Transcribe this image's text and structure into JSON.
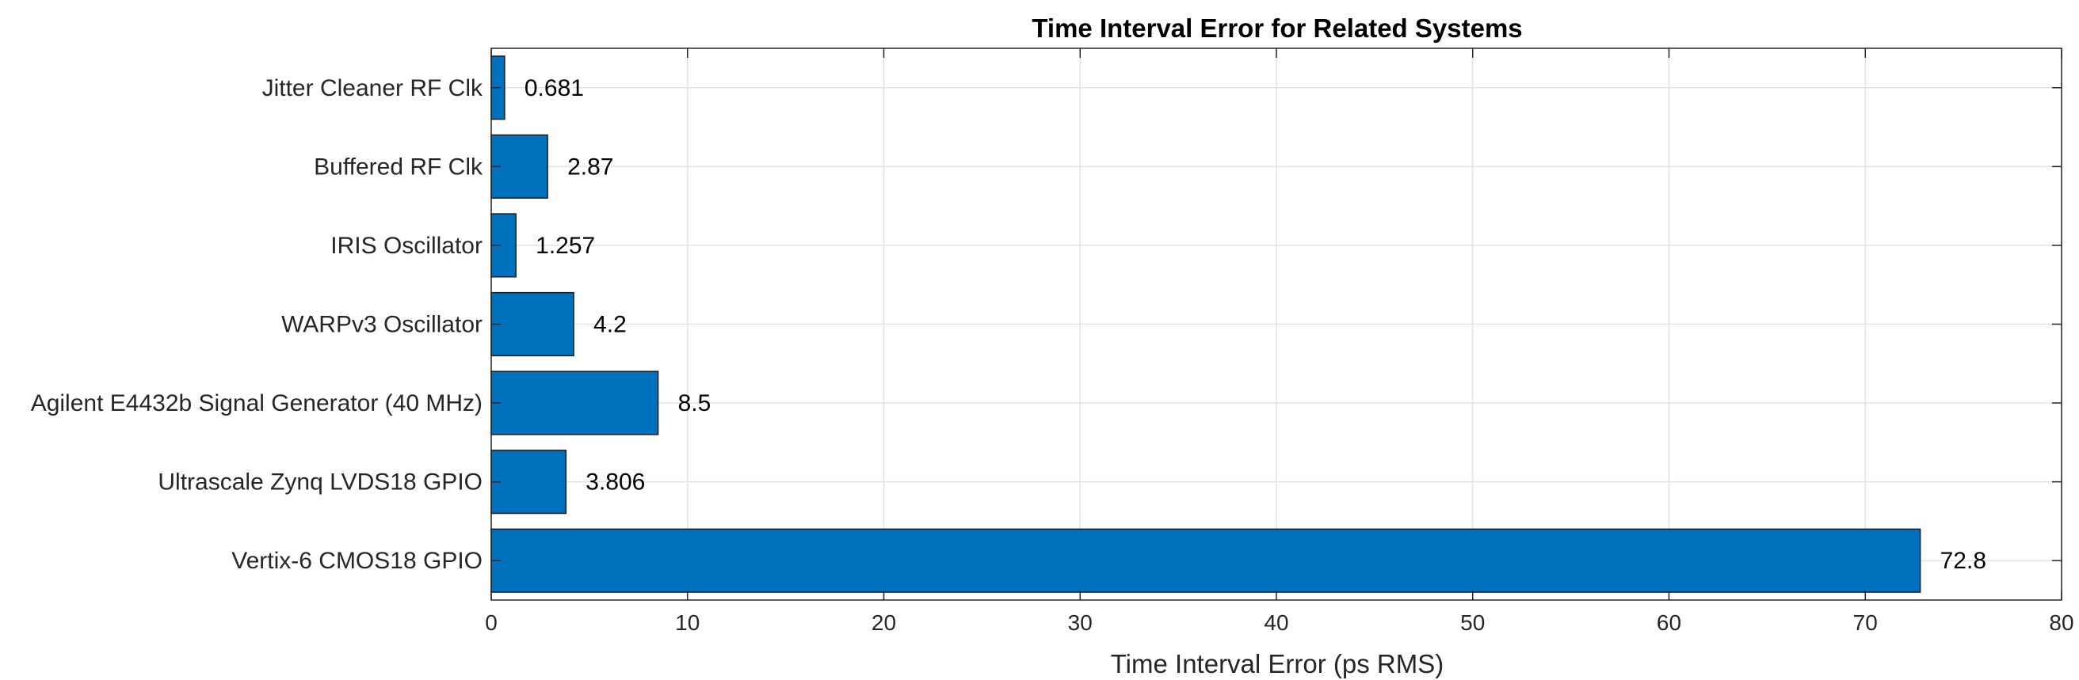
{
  "chart_data": {
    "type": "bar",
    "orientation": "horizontal",
    "title": "Time Interval Error for Related Systems",
    "xlabel": "Time Interval Error (ps RMS)",
    "ylabel": "",
    "xlim": [
      0,
      80
    ],
    "xticks": [
      0,
      10,
      20,
      30,
      40,
      50,
      60,
      70,
      80
    ],
    "grid": true,
    "categories": [
      "Jitter Cleaner RF Clk",
      "Buffered RF Clk",
      "IRIS Oscillator",
      "WARPv3 Oscillator",
      "Agilent E4432b Signal Generator (40 MHz)",
      "Ultrascale Zynq LVDS18 GPIO",
      "Vertix-6 CMOS18 GPIO"
    ],
    "values": [
      0.681,
      2.87,
      1.257,
      4.2,
      8.5,
      3.806,
      72.8
    ],
    "data_labels": [
      "0.681",
      "2.87",
      "1.257",
      "4.2",
      "8.5",
      "3.806",
      "72.8"
    ],
    "colors": {
      "bar": "#0072bd",
      "bar_edge": "#1a1a1a",
      "grid": "#e3e3e3",
      "axis": "#262626"
    }
  }
}
